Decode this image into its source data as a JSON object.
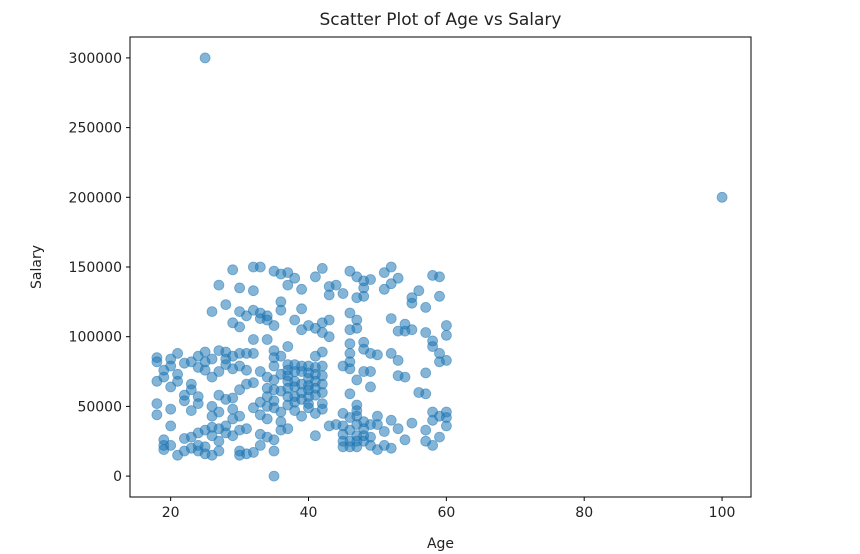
{
  "chart_data": {
    "type": "scatter",
    "title": "Scatter Plot of Age vs Salary",
    "xlabel": "Age",
    "ylabel": "Salary",
    "xlim": [
      14.1,
      104.2
    ],
    "ylim": [
      -15000,
      315000
    ],
    "xticks": [
      20,
      40,
      60,
      80,
      100
    ],
    "yticks": [
      0,
      50000,
      100000,
      150000,
      200000,
      250000,
      300000
    ],
    "xtick_labels": [
      "20",
      "40",
      "60",
      "80",
      "100"
    ],
    "ytick_labels": [
      "0",
      "50000",
      "100000",
      "150000",
      "200000",
      "250000",
      "300000"
    ],
    "grid": false,
    "legend": "none",
    "marker_color": "#1f77b4",
    "marker_alpha": 0.55,
    "points": [
      [
        25,
        300000
      ],
      [
        100,
        200000
      ],
      [
        35,
        0
      ],
      [
        18,
        85000
      ],
      [
        18,
        82000
      ],
      [
        18,
        68000
      ],
      [
        18,
        52000
      ],
      [
        18,
        44000
      ],
      [
        19,
        76000
      ],
      [
        19,
        71000
      ],
      [
        19,
        26000
      ],
      [
        19,
        22000
      ],
      [
        19,
        19000
      ],
      [
        20,
        84000
      ],
      [
        20,
        79000
      ],
      [
        20,
        64000
      ],
      [
        20,
        48000
      ],
      [
        20,
        36000
      ],
      [
        20,
        22000
      ],
      [
        21,
        88000
      ],
      [
        21,
        73000
      ],
      [
        21,
        68000
      ],
      [
        21,
        15000
      ],
      [
        22,
        81000
      ],
      [
        22,
        58000
      ],
      [
        22,
        54000
      ],
      [
        22,
        27000
      ],
      [
        22,
        18000
      ],
      [
        23,
        82000
      ],
      [
        23,
        66000
      ],
      [
        23,
        62000
      ],
      [
        23,
        47000
      ],
      [
        23,
        28000
      ],
      [
        23,
        20000
      ],
      [
        24,
        86000
      ],
      [
        24,
        78000
      ],
      [
        24,
        57000
      ],
      [
        24,
        52000
      ],
      [
        24,
        31000
      ],
      [
        24,
        22000
      ],
      [
        24,
        18000
      ],
      [
        25,
        89000
      ],
      [
        25,
        82000
      ],
      [
        25,
        76000
      ],
      [
        25,
        33000
      ],
      [
        25,
        21000
      ],
      [
        25,
        16000
      ],
      [
        26,
        118000
      ],
      [
        26,
        84000
      ],
      [
        26,
        71000
      ],
      [
        26,
        50000
      ],
      [
        26,
        43000
      ],
      [
        26,
        35000
      ],
      [
        26,
        29000
      ],
      [
        26,
        15000
      ],
      [
        27,
        137000
      ],
      [
        27,
        90000
      ],
      [
        27,
        75000
      ],
      [
        27,
        58000
      ],
      [
        27,
        46000
      ],
      [
        27,
        34000
      ],
      [
        27,
        25000
      ],
      [
        27,
        18000
      ],
      [
        28,
        123000
      ],
      [
        28,
        89000
      ],
      [
        28,
        84000
      ],
      [
        28,
        80000
      ],
      [
        28,
        55000
      ],
      [
        28,
        36000
      ],
      [
        28,
        31000
      ],
      [
        29,
        148000
      ],
      [
        29,
        110000
      ],
      [
        29,
        86000
      ],
      [
        29,
        77000
      ],
      [
        29,
        56000
      ],
      [
        29,
        48000
      ],
      [
        29,
        41000
      ],
      [
        29,
        29000
      ],
      [
        30,
        135000
      ],
      [
        30,
        118000
      ],
      [
        30,
        107000
      ],
      [
        30,
        88000
      ],
      [
        30,
        79000
      ],
      [
        30,
        62000
      ],
      [
        30,
        43000
      ],
      [
        30,
        33000
      ],
      [
        30,
        15000
      ],
      [
        30,
        18000
      ],
      [
        31,
        115000
      ],
      [
        31,
        88000
      ],
      [
        31,
        76000
      ],
      [
        31,
        66000
      ],
      [
        31,
        34000
      ],
      [
        31,
        16000
      ],
      [
        32,
        150000
      ],
      [
        32,
        133000
      ],
      [
        32,
        119000
      ],
      [
        32,
        98000
      ],
      [
        32,
        88000
      ],
      [
        32,
        67000
      ],
      [
        32,
        49000
      ],
      [
        32,
        17000
      ],
      [
        33,
        150000
      ],
      [
        33,
        117000
      ],
      [
        33,
        113000
      ],
      [
        33,
        75000
      ],
      [
        33,
        53000
      ],
      [
        33,
        44000
      ],
      [
        33,
        30000
      ],
      [
        33,
        22000
      ],
      [
        34,
        115000
      ],
      [
        34,
        112000
      ],
      [
        34,
        98000
      ],
      [
        34,
        71000
      ],
      [
        34,
        63000
      ],
      [
        34,
        57000
      ],
      [
        34,
        50000
      ],
      [
        34,
        41000
      ],
      [
        34,
        28000
      ],
      [
        35,
        147000
      ],
      [
        35,
        108000
      ],
      [
        35,
        90000
      ],
      [
        35,
        85000
      ],
      [
        35,
        79000
      ],
      [
        35,
        69000
      ],
      [
        35,
        62000
      ],
      [
        35,
        54000
      ],
      [
        35,
        49000
      ],
      [
        35,
        26000
      ],
      [
        35,
        18000
      ],
      [
        36,
        145000
      ],
      [
        36,
        125000
      ],
      [
        36,
        119000
      ],
      [
        36,
        86000
      ],
      [
        36,
        73000
      ],
      [
        36,
        61000
      ],
      [
        36,
        46000
      ],
      [
        36,
        39000
      ],
      [
        36,
        33000
      ],
      [
        37,
        146000
      ],
      [
        37,
        137000
      ],
      [
        37,
        93000
      ],
      [
        37,
        80000
      ],
      [
        37,
        76000
      ],
      [
        37,
        72000
      ],
      [
        37,
        68000
      ],
      [
        37,
        63000
      ],
      [
        37,
        57000
      ],
      [
        37,
        51000
      ],
      [
        37,
        34000
      ],
      [
        38,
        142000
      ],
      [
        38,
        112000
      ],
      [
        38,
        80000
      ],
      [
        38,
        75000
      ],
      [
        38,
        68000
      ],
      [
        38,
        64000
      ],
      [
        38,
        57000
      ],
      [
        38,
        53000
      ],
      [
        38,
        47000
      ],
      [
        39,
        134000
      ],
      [
        39,
        120000
      ],
      [
        39,
        105000
      ],
      [
        39,
        79000
      ],
      [
        39,
        75000
      ],
      [
        39,
        66000
      ],
      [
        39,
        60000
      ],
      [
        39,
        55000
      ],
      [
        39,
        43000
      ],
      [
        40,
        108000
      ],
      [
        40,
        79000
      ],
      [
        40,
        74000
      ],
      [
        40,
        70000
      ],
      [
        40,
        65000
      ],
      [
        40,
        62000
      ],
      [
        40,
        57000
      ],
      [
        40,
        52000
      ],
      [
        40,
        49000
      ],
      [
        41,
        143000
      ],
      [
        41,
        106000
      ],
      [
        41,
        86000
      ],
      [
        41,
        78000
      ],
      [
        41,
        73000
      ],
      [
        41,
        68000
      ],
      [
        41,
        63000
      ],
      [
        41,
        58000
      ],
      [
        41,
        45000
      ],
      [
        41,
        29000
      ],
      [
        42,
        149000
      ],
      [
        42,
        110000
      ],
      [
        42,
        103000
      ],
      [
        42,
        89000
      ],
      [
        42,
        79000
      ],
      [
        42,
        72000
      ],
      [
        42,
        66000
      ],
      [
        42,
        60000
      ],
      [
        42,
        52000
      ],
      [
        42,
        48000
      ],
      [
        43,
        136000
      ],
      [
        43,
        130000
      ],
      [
        43,
        112000
      ],
      [
        43,
        100000
      ],
      [
        43,
        36000
      ],
      [
        44,
        137000
      ],
      [
        44,
        37000
      ],
      [
        45,
        131000
      ],
      [
        45,
        79000
      ],
      [
        45,
        45000
      ],
      [
        45,
        36000
      ],
      [
        45,
        30000
      ],
      [
        45,
        25000
      ],
      [
        45,
        21000
      ],
      [
        46,
        147000
      ],
      [
        46,
        117000
      ],
      [
        46,
        105000
      ],
      [
        46,
        95000
      ],
      [
        46,
        88000
      ],
      [
        46,
        82000
      ],
      [
        46,
        77000
      ],
      [
        46,
        59000
      ],
      [
        46,
        42000
      ],
      [
        46,
        33000
      ],
      [
        46,
        25000
      ],
      [
        46,
        21000
      ],
      [
        47,
        143000
      ],
      [
        47,
        128000
      ],
      [
        47,
        112000
      ],
      [
        47,
        106000
      ],
      [
        47,
        69000
      ],
      [
        47,
        51000
      ],
      [
        47,
        47000
      ],
      [
        47,
        43000
      ],
      [
        47,
        37000
      ],
      [
        47,
        29000
      ],
      [
        47,
        25000
      ],
      [
        47,
        21000
      ],
      [
        48,
        140000
      ],
      [
        48,
        135000
      ],
      [
        48,
        129000
      ],
      [
        48,
        96000
      ],
      [
        48,
        91000
      ],
      [
        48,
        75000
      ],
      [
        48,
        39000
      ],
      [
        48,
        34000
      ],
      [
        48,
        29000
      ],
      [
        48,
        25000
      ],
      [
        49,
        141000
      ],
      [
        49,
        88000
      ],
      [
        49,
        75000
      ],
      [
        49,
        64000
      ],
      [
        49,
        37000
      ],
      [
        49,
        28000
      ],
      [
        49,
        22000
      ],
      [
        50,
        87000
      ],
      [
        50,
        43000
      ],
      [
        50,
        37000
      ],
      [
        50,
        19000
      ],
      [
        51,
        146000
      ],
      [
        51,
        134000
      ],
      [
        51,
        32000
      ],
      [
        51,
        22000
      ],
      [
        52,
        150000
      ],
      [
        52,
        138000
      ],
      [
        52,
        113000
      ],
      [
        52,
        88000
      ],
      [
        52,
        40000
      ],
      [
        52,
        20000
      ],
      [
        53,
        142000
      ],
      [
        53,
        104000
      ],
      [
        53,
        83000
      ],
      [
        53,
        72000
      ],
      [
        53,
        34000
      ],
      [
        54,
        109000
      ],
      [
        54,
        104000
      ],
      [
        54,
        71000
      ],
      [
        54,
        26000
      ],
      [
        55,
        128000
      ],
      [
        55,
        124000
      ],
      [
        55,
        105000
      ],
      [
        55,
        38000
      ],
      [
        56,
        133000
      ],
      [
        56,
        60000
      ],
      [
        57,
        121000
      ],
      [
        57,
        103000
      ],
      [
        57,
        74000
      ],
      [
        57,
        59000
      ],
      [
        57,
        33000
      ],
      [
        57,
        25000
      ],
      [
        58,
        144000
      ],
      [
        58,
        97000
      ],
      [
        58,
        93000
      ],
      [
        58,
        46000
      ],
      [
        58,
        40000
      ],
      [
        58,
        22000
      ],
      [
        59,
        143000
      ],
      [
        59,
        129000
      ],
      [
        59,
        88000
      ],
      [
        59,
        82000
      ],
      [
        59,
        43000
      ],
      [
        59,
        28000
      ],
      [
        60,
        108000
      ],
      [
        60,
        101000
      ],
      [
        60,
        83000
      ],
      [
        60,
        46000
      ],
      [
        60,
        42000
      ],
      [
        60,
        36000
      ]
    ]
  }
}
